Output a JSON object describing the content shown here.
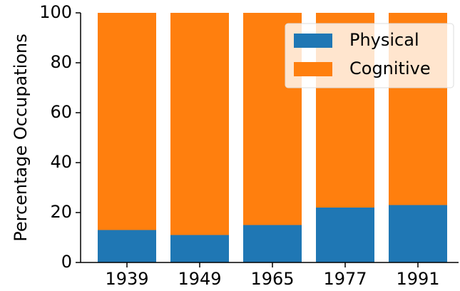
{
  "chart_data": {
    "type": "stacked_bar",
    "y_label": "Percentage Occupations",
    "categories": [
      "1939",
      "1949",
      "1965",
      "1977",
      "1991"
    ],
    "series": [
      {
        "name": "Physical",
        "color": "#1f77b4",
        "values": [
          13,
          11,
          15,
          22,
          23
        ]
      },
      {
        "name": "Cognitive",
        "color": "#ff7f0e",
        "values": [
          87,
          89,
          85,
          78,
          77
        ]
      }
    ],
    "ylim": [
      0,
      100
    ],
    "yticks": [
      0,
      20,
      40,
      60,
      80,
      100
    ],
    "legend": "upper right"
  }
}
